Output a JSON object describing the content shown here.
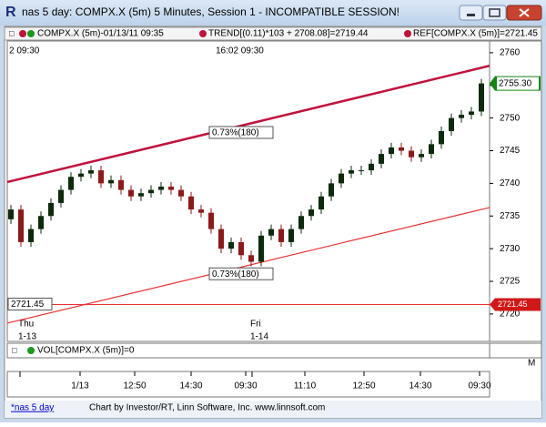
{
  "window_title": "nas 5 day: COMPX.X (5m) 5 Minutes, Session 1 - INCOMPATIBLE SESSION!",
  "legend": {
    "symbol": "COMPX.X (5m)-01/13/11 09:35",
    "trend": "TREND[(0.11)*103 + 2708.08]=2719.44",
    "ref": "REF[COMPX.X (5m)]=2721.45"
  },
  "chart_data": {
    "type": "candlestick",
    "top_times": [
      "2  09:30",
      "16:02  09:30"
    ],
    "days": [
      {
        "name": "Thu",
        "date": "1-13"
      },
      {
        "name": "Fri",
        "date": "1-14"
      }
    ],
    "ylim": [
      2715.8,
      2761.8
    ],
    "yticks": [
      2720,
      2725,
      2730,
      2735,
      2740,
      2745,
      2750,
      2755,
      2760
    ],
    "open": [
      2734.5,
      2736,
      2731,
      2733,
      2735,
      2737,
      2739,
      2741,
      2741.5,
      2742,
      2740,
      2740.5,
      2739,
      2738,
      2738.5,
      2739,
      2739.5,
      2739,
      2738,
      2736,
      2735.5,
      2733,
      2730,
      2731,
      2729,
      2728,
      2732,
      2733,
      2731,
      2733,
      2735,
      2736,
      2738,
      2740,
      2741.5,
      2742,
      2742,
      2743,
      2744.5,
      2745.5,
      2745,
      2744,
      2744.5,
      2746,
      2748,
      2750,
      2750.5,
      2751
    ],
    "high": [
      2736.7,
      2736.7,
      2733.7,
      2735.7,
      2737.7,
      2739.7,
      2741.7,
      2742.2,
      2742.7,
      2742.7,
      2741.2,
      2741.2,
      2739.7,
      2739.2,
      2739.7,
      2740.2,
      2740.2,
      2739.7,
      2738.7,
      2736.7,
      2736.2,
      2733.7,
      2731.7,
      2731.7,
      2729.7,
      2732.7,
      2733.7,
      2733.7,
      2733.7,
      2735.7,
      2736.7,
      2738.7,
      2740.7,
      2742.2,
      2742.7,
      2742.7,
      2743.7,
      2745.2,
      2746.2,
      2746.2,
      2745.7,
      2745.2,
      2746.7,
      2748.7,
      2750.7,
      2751.2,
      2751.7,
      2756
    ],
    "low": [
      2733.8,
      2730.3,
      2730.3,
      2732.3,
      2734.3,
      2736.3,
      2738.3,
      2740.3,
      2740.8,
      2739.3,
      2739.3,
      2738.3,
      2737.3,
      2737.3,
      2737.8,
      2738.3,
      2738.3,
      2737.3,
      2735.3,
      2734.8,
      2732.3,
      2729.3,
      2729.3,
      2728.3,
      2727.3,
      2727.3,
      2731.3,
      2730.3,
      2730.3,
      2732.3,
      2734.3,
      2735.3,
      2737.3,
      2739.3,
      2740.8,
      2741.3,
      2741.3,
      2742.3,
      2743.8,
      2744.3,
      2743.3,
      2743.3,
      2743.8,
      2745.3,
      2747.3,
      2749.3,
      2749.8,
      2750.3
    ],
    "close": [
      2736,
      2731,
      2733,
      2735,
      2737,
      2739,
      2741,
      2741.5,
      2742,
      2740,
      2740.5,
      2739,
      2738,
      2738.5,
      2739,
      2739.5,
      2739,
      2738,
      2736,
      2735.5,
      2733,
      2730,
      2731,
      2729,
      2728,
      2732,
      2733,
      2731,
      2733,
      2735,
      2736,
      2738,
      2740,
      2741.5,
      2742,
      2742,
      2743,
      2744.5,
      2745.5,
      2745,
      2744,
      2744.5,
      2746,
      2748,
      2750,
      2750.5,
      2751,
      2755.3
    ],
    "up_color": "#0d2a0d",
    "down_color": "#8b1a1a",
    "upper_channel": {
      "start": 2740.2,
      "end": 2758.0,
      "label": "0.73%(180)",
      "color": "#c0123c"
    },
    "lower_channel": {
      "start": 2718.6,
      "end": 2736.3,
      "label": "0.73%(180)",
      "color": "#e83030"
    },
    "ref_line": {
      "value": 2721.45,
      "label": "2721.45",
      "color": "#e83030"
    },
    "last_price": {
      "value": 2755.3,
      "label": "2755.30"
    },
    "x_labels": [
      "1/13",
      "12:50",
      "14:30",
      "09:30",
      "11:10",
      "12:50",
      "14:30",
      "09:30"
    ]
  },
  "volume": {
    "label": "VOL[COMPX.X (5m)]=0",
    "scale": "M"
  },
  "status": {
    "tab": "*nas 5 day",
    "credit": "Chart by Investor/RT, Linn Software, Inc. www.linnsoft.com"
  }
}
